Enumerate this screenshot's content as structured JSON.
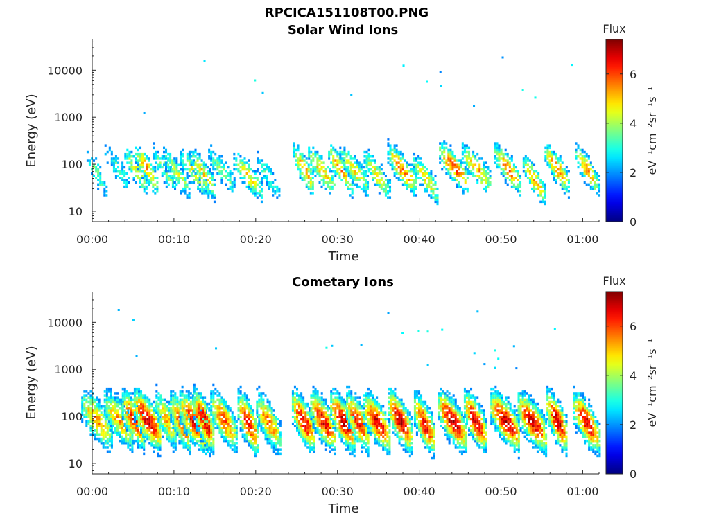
{
  "figure": {
    "title": "RPCICA151108T00.PNG"
  },
  "chart_data": [
    {
      "type": "heatmap",
      "title": "Solar Wind Ions",
      "xlabel": "Time",
      "ylabel": "Energy (eV)",
      "y_scale": "log",
      "ylim": [
        6,
        45000
      ],
      "xlim_minutes": [
        0,
        62
      ],
      "x_ticks": [
        "00:00",
        "00:10",
        "00:20",
        "00:30",
        "00:40",
        "00:50",
        "01:00"
      ],
      "y_ticks": [
        "10",
        "100",
        "1000",
        "10000"
      ],
      "colorbar": {
        "label": "Flux",
        "unit": "eV⁻¹cm⁻²sr⁻¹s⁻¹",
        "range": [
          0,
          7.4
        ],
        "ticks": [
          "0",
          "2",
          "4",
          "6"
        ]
      },
      "colormap": "jet",
      "bursts_center_minutes": [
        0.5,
        3.0,
        5.3,
        6.6,
        8.8,
        10.3,
        12.5,
        13.5,
        15.8,
        19.0,
        21.5,
        25.8,
        28.0,
        30.3,
        32.0,
        34.8,
        37.8,
        40.8,
        44.2,
        47.0,
        50.8,
        54.0,
        56.8,
        60.5
      ],
      "bursts_peak_energy_eV": [
        60,
        80,
        70,
        75,
        70,
        60,
        60,
        60,
        70,
        55,
        50,
        75,
        70,
        75,
        70,
        55,
        75,
        45,
        80,
        75,
        75,
        45,
        75,
        70
      ],
      "bursts_peak_flux": [
        3.5,
        3.2,
        4.5,
        5.2,
        3.8,
        4.2,
        4.6,
        4.8,
        3.8,
        4.6,
        3.2,
        5.3,
        5.0,
        5.4,
        4.8,
        4.6,
        5.7,
        4.8,
        6.0,
        5.2,
        5.6,
        5.2,
        5.5,
        5.2
      ]
    },
    {
      "type": "heatmap",
      "title": "Cometary Ions",
      "xlabel": "Time",
      "ylabel": "Energy (eV)",
      "y_scale": "log",
      "ylim": [
        6,
        45000
      ],
      "xlim_minutes": [
        0,
        62
      ],
      "x_ticks": [
        "00:00",
        "00:10",
        "00:20",
        "00:30",
        "00:40",
        "00:50",
        "01:00"
      ],
      "y_ticks": [
        "10",
        "100",
        "1000",
        "10000"
      ],
      "colorbar": {
        "label": "Flux",
        "unit": "eV⁻¹cm⁻²sr⁻¹s⁻¹",
        "range": [
          0,
          7.4
        ],
        "ticks": [
          "0",
          "2",
          "4",
          "6"
        ]
      },
      "colormap": "jet",
      "bursts_center_minutes": [
        0.5,
        3.2,
        5.0,
        6.7,
        9.0,
        10.8,
        12.5,
        13.6,
        16.0,
        19.0,
        21.5,
        25.8,
        28.2,
        30.6,
        32.4,
        34.8,
        37.6,
        40.6,
        44.0,
        46.8,
        50.5,
        53.8,
        56.8,
        60.4
      ],
      "bursts_peak_energy_eV": [
        80,
        80,
        80,
        80,
        80,
        70,
        70,
        75,
        80,
        70,
        70,
        75,
        75,
        75,
        75,
        70,
        75,
        65,
        75,
        75,
        75,
        70,
        75,
        70
      ],
      "bursts_peak_flux": [
        5.4,
        5.2,
        6.2,
        6.8,
        5.0,
        6.0,
        6.6,
        6.8,
        5.8,
        6.6,
        5.6,
        6.6,
        6.6,
        6.8,
        6.4,
        6.6,
        6.9,
        6.5,
        6.9,
        6.7,
        6.8,
        6.6,
        6.8,
        6.6
      ]
    }
  ]
}
